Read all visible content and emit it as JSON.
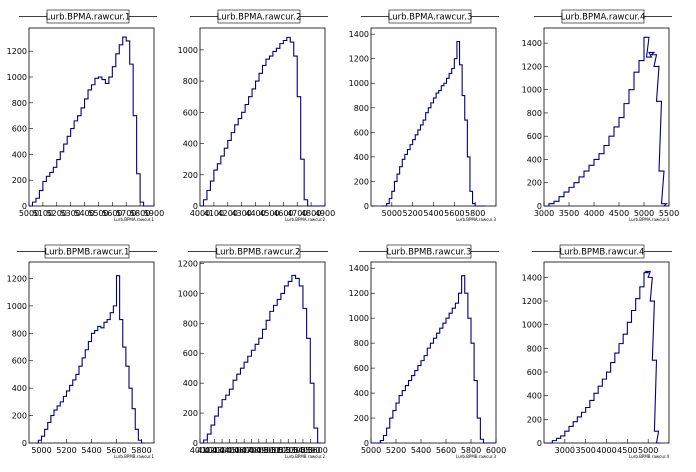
{
  "chart_data": [
    {
      "type": "histogram",
      "title": "Lurb.BPMA.rawcur.1",
      "xlabel": "Lurb.BPMA.rawcur.1",
      "xlim": [
        5000,
        5900
      ],
      "xticks": [
        "5000",
        "5100",
        "5200",
        "5300",
        "5400",
        "5500",
        "5600",
        "5700",
        "5800",
        "5900"
      ],
      "ylim": [
        0,
        1380
      ],
      "yticks": [
        0,
        200,
        400,
        600,
        800,
        1000,
        1200
      ],
      "x": [
        5000,
        5025,
        5050,
        5075,
        5100,
        5125,
        5150,
        5175,
        5200,
        5225,
        5250,
        5275,
        5300,
        5325,
        5350,
        5375,
        5400,
        5425,
        5450,
        5475,
        5500,
        5525,
        5550,
        5575,
        5600,
        5625,
        5650,
        5675,
        5700,
        5725,
        5750,
        5775,
        5800,
        5825,
        5850,
        5875
      ],
      "values": [
        0,
        30,
        60,
        120,
        190,
        230,
        260,
        300,
        360,
        420,
        480,
        540,
        600,
        660,
        700,
        760,
        830,
        900,
        940,
        990,
        1000,
        980,
        950,
        1000,
        1080,
        1180,
        1250,
        1310,
        1280,
        1100,
        700,
        250,
        30,
        0,
        0,
        0
      ]
    },
    {
      "type": "histogram",
      "title": "Lurb.BPMA.rawcur.2",
      "xlabel": "Lurb.BPMA.rawcur.2",
      "xlim": [
        4000,
        4900
      ],
      "xticks": [
        "4000",
        "4100",
        "4200",
        "4300",
        "4400",
        "4500",
        "4600",
        "4700",
        "4800",
        "4900"
      ],
      "ylim": [
        0,
        1140
      ],
      "yticks": [
        0,
        200,
        400,
        600,
        800,
        1000
      ],
      "x": [
        4000,
        4025,
        4050,
        4075,
        4100,
        4125,
        4150,
        4175,
        4200,
        4225,
        4250,
        4275,
        4300,
        4325,
        4350,
        4375,
        4400,
        4425,
        4450,
        4475,
        4500,
        4525,
        4550,
        4575,
        4600,
        4625,
        4650,
        4675,
        4700,
        4725,
        4750,
        4775,
        4800,
        4825,
        4850,
        4875
      ],
      "values": [
        0,
        40,
        100,
        160,
        230,
        270,
        320,
        370,
        420,
        470,
        520,
        560,
        600,
        650,
        700,
        750,
        800,
        850,
        900,
        940,
        960,
        990,
        1010,
        1040,
        1060,
        1080,
        1050,
        960,
        700,
        300,
        40,
        0,
        0,
        0,
        0,
        0
      ]
    },
    {
      "type": "histogram",
      "title": "Lurb.BPMA.rawcur.3",
      "xlabel": "Lurb.BPMA.rawcur.3",
      "xlim": [
        4800,
        6000
      ],
      "xticks": [
        "5000",
        "5200",
        "5400",
        "5600",
        "5800"
      ],
      "xtick_values": [
        5000,
        5200,
        5400,
        5600,
        5800
      ],
      "ylim": [
        0,
        1450
      ],
      "yticks": [
        0,
        200,
        400,
        600,
        800,
        1000,
        1200,
        1400
      ],
      "x": [
        4900,
        4925,
        4950,
        4975,
        5000,
        5025,
        5050,
        5075,
        5100,
        5125,
        5150,
        5175,
        5200,
        5225,
        5250,
        5275,
        5300,
        5325,
        5350,
        5375,
        5400,
        5425,
        5450,
        5475,
        5500,
        5525,
        5550,
        5575,
        5600,
        5625,
        5650,
        5675,
        5700,
        5725,
        5750,
        5775,
        5800,
        5825,
        5850,
        5875
      ],
      "values": [
        0,
        0,
        20,
        60,
        120,
        200,
        260,
        320,
        380,
        420,
        460,
        500,
        540,
        580,
        620,
        660,
        700,
        760,
        800,
        840,
        880,
        920,
        940,
        980,
        1000,
        1040,
        1080,
        1120,
        1200,
        1340,
        1150,
        900,
        700,
        400,
        120,
        20,
        0,
        0,
        0,
        0
      ]
    },
    {
      "type": "histogram",
      "title": "Lurb.BPMA.rawcur.4",
      "xlabel": "Lurb.BPMA.rawcur.4",
      "xlim": [
        3000,
        5500
      ],
      "xticks": [
        "3000",
        "3500",
        "4000",
        "4500",
        "5000",
        "5500"
      ],
      "xtick_values": [
        3000,
        3500,
        4000,
        4500,
        5000,
        5500
      ],
      "ylim": [
        0,
        1530
      ],
      "yticks": [
        0,
        200,
        400,
        600,
        800,
        1000,
        1200,
        1400
      ],
      "x": [
        3000,
        3100,
        3200,
        3300,
        3400,
        3500,
        3600,
        3700,
        3800,
        3900,
        4000,
        4100,
        4200,
        4300,
        4400,
        4500,
        4600,
        4700,
        4800,
        4900,
        5000,
        5050,
        5100,
        5150,
        5200,
        5250,
        5300,
        5350,
        5400
      ],
      "values": [
        0,
        20,
        40,
        80,
        120,
        160,
        200,
        250,
        300,
        350,
        400,
        450,
        520,
        600,
        680,
        760,
        880,
        1000,
        1150,
        1250,
        1450,
        1280,
        1320,
        1300,
        1200,
        900,
        300,
        20,
        0
      ]
    },
    {
      "type": "histogram",
      "title": "Lurb.BPMB.rawcur.1",
      "xlabel": "Lurb.BPMB.rawcur.1",
      "xlim": [
        4900,
        5900
      ],
      "xticks": [
        "5000",
        "5200",
        "5400",
        "5600",
        "5800"
      ],
      "xtick_values": [
        5000,
        5200,
        5400,
        5600,
        5800
      ],
      "ylim": [
        0,
        1320
      ],
      "yticks": [
        0,
        200,
        400,
        600,
        800,
        1000,
        1200
      ],
      "x": [
        4950,
        4975,
        5000,
        5025,
        5050,
        5075,
        5100,
        5125,
        5150,
        5175,
        5200,
        5225,
        5250,
        5275,
        5300,
        5325,
        5350,
        5375,
        5400,
        5425,
        5450,
        5475,
        5500,
        5525,
        5550,
        5575,
        5600,
        5625,
        5650,
        5675,
        5700,
        5725,
        5750,
        5775,
        5800
      ],
      "values": [
        0,
        20,
        50,
        100,
        150,
        200,
        240,
        270,
        300,
        340,
        380,
        420,
        460,
        500,
        560,
        620,
        680,
        740,
        800,
        820,
        850,
        840,
        880,
        900,
        950,
        1000,
        1220,
        900,
        700,
        560,
        400,
        250,
        100,
        20,
        0
      ]
    },
    {
      "type": "histogram",
      "title": "Lurb.BPMB.rawcur.2",
      "xlabel": "Lurb.BPMB.rawcur.2",
      "xlim": [
        4000,
        5700
      ],
      "xticks": [
        "4000",
        "4100",
        "4200",
        "4300",
        "4400",
        "4500",
        "4600",
        "4700",
        "4800",
        "4900",
        "5000",
        "5100",
        "5200",
        "5300",
        "5400",
        "5500",
        "5600"
      ],
      "ylim": [
        0,
        1210
      ],
      "yticks": [
        0,
        200,
        400,
        600,
        800,
        1000,
        1200
      ],
      "x": [
        4000,
        4050,
        4100,
        4150,
        4200,
        4250,
        4300,
        4350,
        4400,
        4450,
        4500,
        4550,
        4600,
        4650,
        4700,
        4750,
        4800,
        4850,
        4900,
        4950,
        5000,
        5050,
        5100,
        5150,
        5200,
        5250,
        5300,
        5350,
        5400,
        5450,
        5500,
        5550,
        5600
      ],
      "values": [
        0,
        20,
        60,
        120,
        180,
        240,
        290,
        320,
        360,
        420,
        460,
        500,
        540,
        580,
        620,
        660,
        700,
        760,
        820,
        880,
        920,
        960,
        1000,
        1050,
        1080,
        1120,
        1100,
        1050,
        900,
        700,
        400,
        100,
        0
      ]
    },
    {
      "type": "histogram",
      "title": "Lurb.BPMB.rawcur.3",
      "xlabel": "Lurb.BPMB.rawcur.3",
      "xlim": [
        5000,
        6000
      ],
      "xticks": [
        "5000",
        "5200",
        "5400",
        "5600",
        "5800",
        "6000"
      ],
      "xtick_values": [
        5000,
        5200,
        5400,
        5600,
        5800,
        6000
      ],
      "ylim": [
        0,
        1450
      ],
      "yticks": [
        0,
        200,
        400,
        600,
        800,
        1000,
        1200,
        1400
      ],
      "x": [
        5000,
        5025,
        5050,
        5075,
        5100,
        5125,
        5150,
        5175,
        5200,
        5225,
        5250,
        5275,
        5300,
        5325,
        5350,
        5375,
        5400,
        5425,
        5450,
        5475,
        5500,
        5525,
        5550,
        5575,
        5600,
        5625,
        5650,
        5675,
        5700,
        5725,
        5750,
        5775,
        5800,
        5825,
        5850,
        5875,
        5900,
        5925,
        5950,
        5975
      ],
      "values": [
        0,
        0,
        0,
        20,
        60,
        120,
        200,
        260,
        320,
        380,
        420,
        460,
        500,
        540,
        580,
        620,
        660,
        700,
        760,
        800,
        840,
        880,
        920,
        960,
        1000,
        1040,
        1080,
        1120,
        1200,
        1340,
        1200,
        1000,
        800,
        500,
        200,
        30,
        0,
        0,
        0,
        0
      ]
    },
    {
      "type": "histogram",
      "title": "Lurb.BPMB.rawcur.4",
      "xlabel": "Lurb.BPMB.rawcur.4",
      "xlim": [
        2500,
        5500
      ],
      "xticks": [
        "3000",
        "3500",
        "4000",
        "4500",
        "5000"
      ],
      "xtick_values": [
        3000,
        3500,
        4000,
        4500,
        5000
      ],
      "ylim": [
        0,
        1530
      ],
      "yticks": [
        0,
        200,
        400,
        600,
        800,
        1000,
        1200,
        1400
      ],
      "x": [
        2600,
        2700,
        2800,
        2900,
        3000,
        3100,
        3200,
        3300,
        3400,
        3500,
        3600,
        3700,
        3800,
        3900,
        4000,
        4100,
        4200,
        4300,
        4400,
        4500,
        4600,
        4700,
        4800,
        4900,
        4950,
        5000,
        5050,
        5100,
        5150,
        5200
      ],
      "values": [
        0,
        20,
        40,
        60,
        100,
        140,
        180,
        220,
        260,
        300,
        360,
        420,
        480,
        540,
        600,
        680,
        760,
        840,
        920,
        1020,
        1120,
        1220,
        1320,
        1440,
        1450,
        1400,
        1200,
        700,
        100,
        0
      ]
    }
  ]
}
